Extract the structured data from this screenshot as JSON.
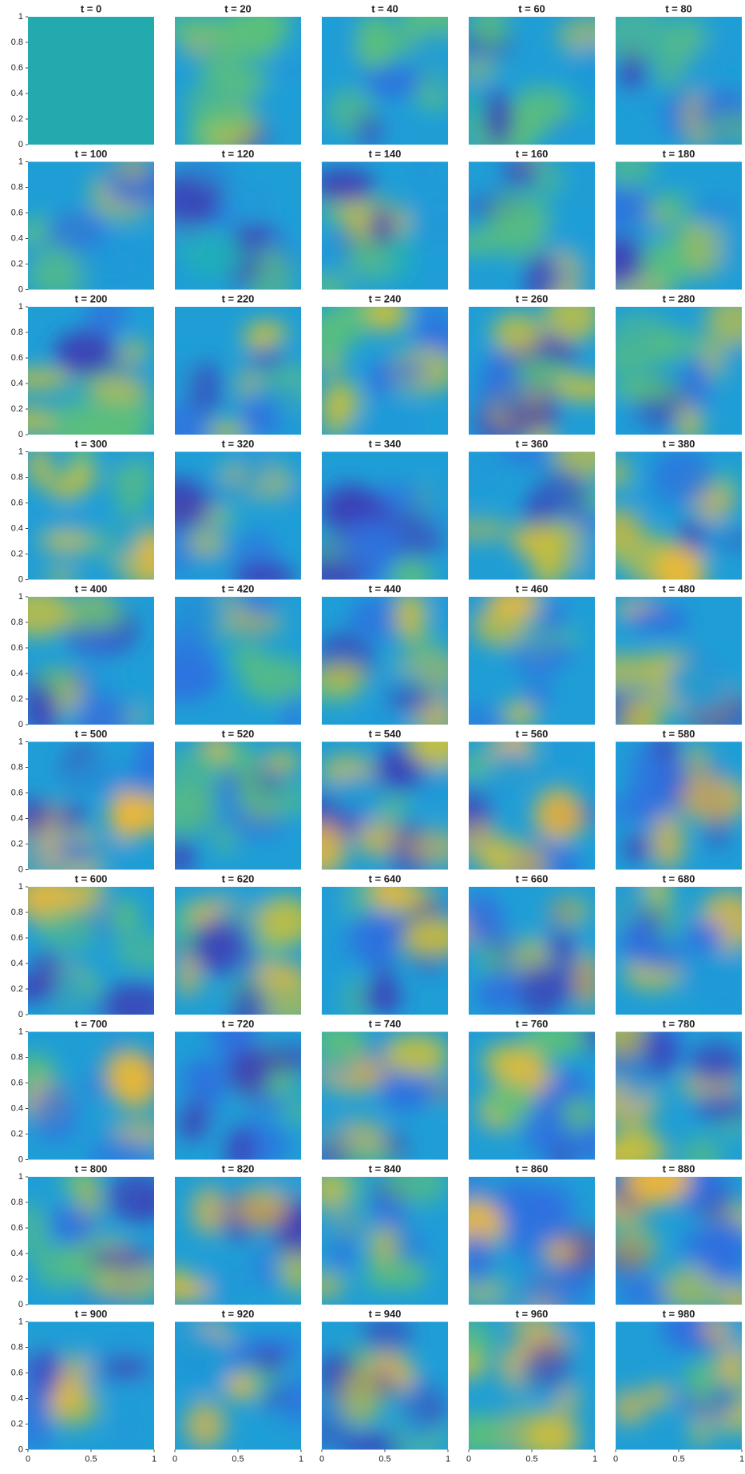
{
  "chart_data": {
    "type": "heatmap",
    "panels": [
      {
        "title": "t = 0"
      },
      {
        "title": "t = 20"
      },
      {
        "title": "t = 40"
      },
      {
        "title": "t = 60"
      },
      {
        "title": "t = 80"
      },
      {
        "title": "t = 100"
      },
      {
        "title": "t = 120"
      },
      {
        "title": "t = 140"
      },
      {
        "title": "t = 160"
      },
      {
        "title": "t = 180"
      },
      {
        "title": "t = 200"
      },
      {
        "title": "t = 220"
      },
      {
        "title": "t = 240"
      },
      {
        "title": "t = 260"
      },
      {
        "title": "t = 280"
      },
      {
        "title": "t = 300"
      },
      {
        "title": "t = 320"
      },
      {
        "title": "t = 340"
      },
      {
        "title": "t = 360"
      },
      {
        "title": "t = 380"
      },
      {
        "title": "t = 400"
      },
      {
        "title": "t = 420"
      },
      {
        "title": "t = 440"
      },
      {
        "title": "t = 460"
      },
      {
        "title": "t = 480"
      },
      {
        "title": "t = 500"
      },
      {
        "title": "t = 520"
      },
      {
        "title": "t = 540"
      },
      {
        "title": "t = 560"
      },
      {
        "title": "t = 580"
      },
      {
        "title": "t = 600"
      },
      {
        "title": "t = 620"
      },
      {
        "title": "t = 640"
      },
      {
        "title": "t = 660"
      },
      {
        "title": "t = 680"
      },
      {
        "title": "t = 700"
      },
      {
        "title": "t = 720"
      },
      {
        "title": "t = 740"
      },
      {
        "title": "t = 760"
      },
      {
        "title": "t = 780"
      },
      {
        "title": "t = 800"
      },
      {
        "title": "t = 820"
      },
      {
        "title": "t = 840"
      },
      {
        "title": "t = 860"
      },
      {
        "title": "t = 880"
      },
      {
        "title": "t = 900"
      },
      {
        "title": "t = 920"
      },
      {
        "title": "t = 940"
      },
      {
        "title": "t = 960"
      },
      {
        "title": "t = 980"
      }
    ],
    "xlim": [
      0,
      1
    ],
    "ylim": [
      0,
      1
    ],
    "xticks": [
      0,
      0.5,
      1
    ],
    "yticks": [
      0,
      0.2,
      0.4,
      0.6,
      0.8,
      1
    ]
  }
}
